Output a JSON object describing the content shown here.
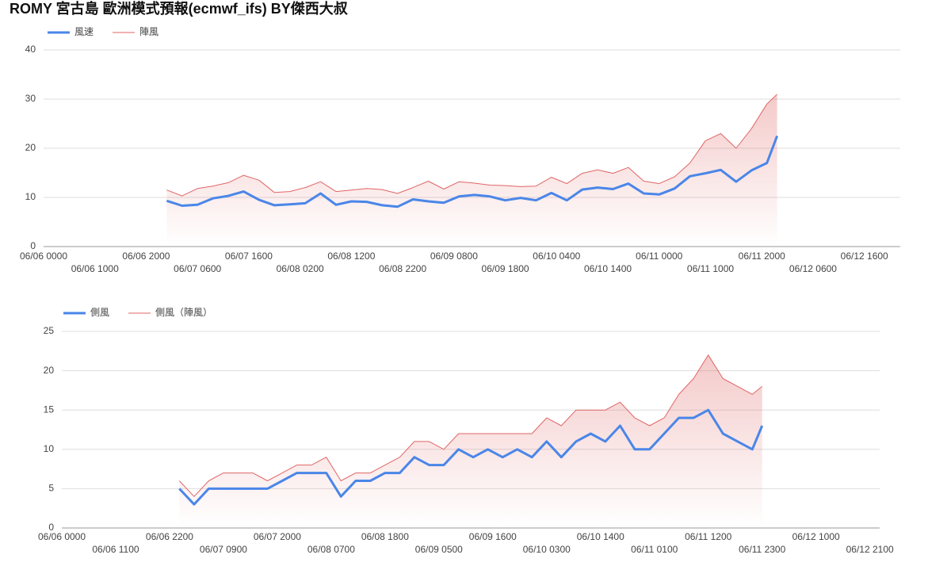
{
  "title": "ROMY 宮古島 歐洲模式預報(ecmwf_ifs)  BY傑西大叔",
  "chart_data": [
    {
      "type": "line",
      "x": [
        "06/07 0000",
        "06/07 0300",
        "06/07 0600",
        "06/07 0900",
        "06/07 1200",
        "06/07 1500",
        "06/07 1800",
        "06/07 2100",
        "06/08 0000",
        "06/08 0300",
        "06/08 0600",
        "06/08 0900",
        "06/08 1200",
        "06/08 1500",
        "06/08 1800",
        "06/08 2100",
        "06/09 0000",
        "06/09 0300",
        "06/09 0600",
        "06/09 0900",
        "06/09 1200",
        "06/09 1500",
        "06/09 1800",
        "06/09 2100",
        "06/10 0000",
        "06/10 0300",
        "06/10 0600",
        "06/10 0900",
        "06/10 1200",
        "06/10 1500",
        "06/10 1800",
        "06/10 2100",
        "06/11 0000",
        "06/11 0300",
        "06/11 0600",
        "06/11 0900",
        "06/11 1200",
        "06/11 1500",
        "06/11 1800",
        "06/11 2100",
        "06/11 2300"
      ],
      "series": [
        {
          "name": "風速",
          "color": "#4a86e8",
          "line_width": 3,
          "area": false,
          "values": [
            9.3,
            8.3,
            8.5,
            9.8,
            10.3,
            11.2,
            9.5,
            8.4,
            8.6,
            8.8,
            10.8,
            8.5,
            9.2,
            9.1,
            8.4,
            8.1,
            9.6,
            9.2,
            8.9,
            10.2,
            10.5,
            10.2,
            9.4,
            9.9,
            9.4,
            10.9,
            9.4,
            11.6,
            12,
            11.7,
            12.8,
            10.8,
            10.6,
            11.8,
            14.3,
            14.9,
            15.6,
            13.2,
            15.5,
            17,
            22.5
          ]
        },
        {
          "name": "陣風",
          "color": "#e06666",
          "line_width": 1,
          "area": true,
          "values": [
            11.5,
            10.3,
            11.8,
            12.3,
            13,
            14.5,
            13.5,
            11,
            11.2,
            12,
            13.2,
            11.2,
            11.5,
            11.8,
            11.6,
            10.8,
            12,
            13.3,
            11.7,
            13.2,
            12.9,
            12.5,
            12.4,
            12.2,
            12.3,
            14.1,
            12.8,
            14.9,
            15.6,
            14.9,
            16.1,
            13.3,
            12.8,
            14.2,
            17,
            21.5,
            23,
            20,
            24,
            29,
            31
          ]
        }
      ],
      "xlim": [
        "06/06 0000",
        "06/12 2300"
      ],
      "xticks": [
        "06/06 0000",
        "06/06 1000",
        "06/06 2000",
        "06/07 0600",
        "06/07 1600",
        "06/08 0200",
        "06/08 1200",
        "06/08 2200",
        "06/09 0800",
        "06/09 1800",
        "06/10 0400",
        "06/10 1400",
        "06/11 0000",
        "06/11 1000",
        "06/11 2000",
        "06/12 0600",
        "06/12 1600"
      ],
      "ylim": [
        0,
        40
      ],
      "yticks": [
        0,
        10,
        20,
        30,
        40
      ],
      "grid": true,
      "legend": "top-left"
    },
    {
      "type": "line",
      "x": [
        "06/07 0000",
        "06/07 0300",
        "06/07 0600",
        "06/07 0900",
        "06/07 1200",
        "06/07 1500",
        "06/07 1800",
        "06/07 2100",
        "06/08 0000",
        "06/08 0300",
        "06/08 0600",
        "06/08 0900",
        "06/08 1200",
        "06/08 1500",
        "06/08 1800",
        "06/08 2100",
        "06/09 0000",
        "06/09 0300",
        "06/09 0600",
        "06/09 0900",
        "06/09 1200",
        "06/09 1500",
        "06/09 1800",
        "06/09 2100",
        "06/10 0000",
        "06/10 0300",
        "06/10 0600",
        "06/10 0900",
        "06/10 1200",
        "06/10 1500",
        "06/10 1800",
        "06/10 2100",
        "06/11 0000",
        "06/11 0300",
        "06/11 0600",
        "06/11 0900",
        "06/11 1200",
        "06/11 1500",
        "06/11 1800",
        "06/11 2100",
        "06/11 2300"
      ],
      "series": [
        {
          "name": "側風",
          "color": "#4a86e8",
          "line_width": 3,
          "area": false,
          "values": [
            5,
            3,
            5,
            5,
            5,
            5,
            5,
            6,
            7,
            7,
            7,
            4,
            6,
            6,
            7,
            7,
            9,
            8,
            8,
            10,
            9,
            10,
            9,
            10,
            9,
            11,
            9,
            11,
            12,
            11,
            13,
            10,
            10,
            12,
            14,
            14,
            15,
            12,
            11,
            10,
            13
          ]
        },
        {
          "name": "側風（陣風）",
          "color": "#e06666",
          "line_width": 1,
          "area": true,
          "values": [
            6,
            4,
            6,
            7,
            7,
            7,
            6,
            7,
            8,
            8,
            9,
            6,
            7,
            7,
            8,
            9,
            11,
            11,
            10,
            12,
            12,
            12,
            12,
            12,
            12,
            14,
            13,
            15,
            15,
            15,
            16,
            14,
            13,
            14,
            17,
            19,
            22,
            19,
            18,
            17,
            18
          ]
        }
      ],
      "xlim": [
        "06/06 0000",
        "06/12 2300"
      ],
      "xticks": [
        "06/06 0000",
        "06/06 1100",
        "06/06 2200",
        "06/07 0900",
        "06/07 2000",
        "06/08 0700",
        "06/08 1800",
        "06/09 0500",
        "06/09 1600",
        "06/10 0300",
        "06/10 1400",
        "06/11 0100",
        "06/11 1200",
        "06/11 2300",
        "06/12 1000",
        "06/12 2100"
      ],
      "ylim": [
        0,
        25
      ],
      "yticks": [
        0,
        5,
        10,
        15,
        20,
        25
      ],
      "grid": true,
      "legend": "top-left"
    }
  ]
}
